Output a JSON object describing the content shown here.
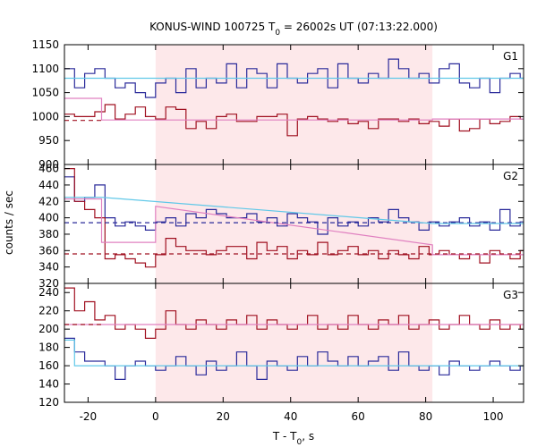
{
  "chart_data": {
    "type": "line",
    "title_main": "KONUS-WIND 100725 T",
    "title_sub": "0",
    "title_rest": " = 26002s UT (07:13:22.000)",
    "xlabel_main": "T - T",
    "xlabel_sub": "0",
    "xlabel_rest": ", s",
    "ylabel": "counts / sec",
    "xlim": [
      -27,
      109
    ],
    "xticks": [
      -20,
      0,
      20,
      40,
      60,
      80,
      100
    ],
    "highlight": {
      "x0": 0,
      "x1": 82,
      "color": "#fde8ea"
    },
    "colors": {
      "dark_blue": "#2a2a9a",
      "dark_red": "#a01020",
      "light_blue": "#60c8e8",
      "pink": "#e080c0"
    },
    "panels": [
      {
        "name": "G1",
        "ylim": [
          900,
          1150
        ],
        "yticks": [
          900,
          950,
          1000,
          1050,
          1100,
          1150
        ],
        "series": [
          {
            "color": "dark_blue",
            "step": true,
            "x": [
              -27,
              -24,
              -21,
              -18,
              -15,
              -12,
              -9,
              -6,
              -3,
              0,
              3,
              6,
              9,
              12,
              15,
              18,
              21,
              24,
              27,
              30,
              33,
              36,
              39,
              42,
              45,
              48,
              51,
              54,
              57,
              60,
              63,
              66,
              69,
              72,
              75,
              78,
              81,
              84,
              87,
              90,
              93,
              96,
              99,
              102,
              105,
              108
            ],
            "y": [
              1100,
              1060,
              1090,
              1100,
              1080,
              1060,
              1070,
              1050,
              1040,
              1070,
              1080,
              1050,
              1100,
              1060,
              1080,
              1070,
              1110,
              1060,
              1100,
              1090,
              1060,
              1110,
              1080,
              1070,
              1090,
              1100,
              1060,
              1110,
              1080,
              1070,
              1090,
              1080,
              1120,
              1100,
              1080,
              1090,
              1070,
              1100,
              1110,
              1070,
              1060,
              1080,
              1050,
              1080,
              1090,
              1080
            ]
          },
          {
            "color": "dark_red",
            "step": true,
            "x": [
              -27,
              -24,
              -21,
              -18,
              -15,
              -12,
              -9,
              -6,
              -3,
              0,
              3,
              6,
              9,
              12,
              15,
              18,
              21,
              24,
              27,
              30,
              33,
              36,
              39,
              42,
              45,
              48,
              51,
              54,
              57,
              60,
              63,
              66,
              69,
              72,
              75,
              78,
              81,
              84,
              87,
              90,
              93,
              96,
              99,
              102,
              105,
              108
            ],
            "y": [
              1005,
              1000,
              1000,
              1010,
              1025,
              995,
              1005,
              1020,
              1000,
              995,
              1020,
              1015,
              975,
              990,
              975,
              1000,
              1005,
              990,
              990,
              1000,
              1000,
              1005,
              960,
              995,
              1000,
              995,
              990,
              995,
              985,
              990,
              975,
              995,
              995,
              990,
              995,
              985,
              990,
              980,
              995,
              970,
              975,
              995,
              985,
              990,
              1000,
              995
            ]
          },
          {
            "color": "light_blue",
            "step": false,
            "x": [
              -27,
              109
            ],
            "y": [
              1080,
              1080
            ]
          },
          {
            "color": "pink",
            "step": false,
            "x": [
              -27,
              -16,
              -16,
              82,
              82,
              109
            ],
            "y": [
              1038,
              1038,
              993,
              993,
              995,
              995
            ]
          },
          {
            "color": "dark_red",
            "dashed": true,
            "x": [
              -27,
              -16
            ],
            "y": [
              992,
              992
            ]
          }
        ]
      },
      {
        "name": "G2",
        "ylim": [
          320,
          465
        ],
        "yticks": [
          320,
          340,
          360,
          380,
          400,
          420,
          440,
          460
        ],
        "series": [
          {
            "color": "dark_blue",
            "step": true,
            "x": [
              -27,
              -24,
              -21,
              -18,
              -15,
              -12,
              -9,
              -6,
              -3,
              0,
              3,
              6,
              9,
              12,
              15,
              18,
              21,
              24,
              27,
              30,
              33,
              36,
              39,
              42,
              45,
              48,
              51,
              54,
              57,
              60,
              63,
              66,
              69,
              72,
              75,
              78,
              81,
              84,
              87,
              90,
              93,
              96,
              99,
              102,
              105,
              108
            ],
            "y": [
              450,
              420,
              425,
              440,
              400,
              390,
              395,
              390,
              385,
              395,
              400,
              390,
              405,
              400,
              410,
              405,
              400,
              400,
              405,
              395,
              400,
              390,
              405,
              400,
              395,
              380,
              400,
              390,
              395,
              390,
              400,
              395,
              410,
              400,
              395,
              385,
              395,
              390,
              395,
              400,
              390,
              395,
              385,
              410,
              390,
              395
            ]
          },
          {
            "color": "dark_red",
            "step": true,
            "x": [
              -27,
              -24,
              -21,
              -18,
              -15,
              -12,
              -9,
              -6,
              -3,
              0,
              3,
              6,
              9,
              12,
              15,
              18,
              21,
              24,
              27,
              30,
              33,
              36,
              39,
              42,
              45,
              48,
              51,
              54,
              57,
              60,
              63,
              66,
              69,
              72,
              75,
              78,
              81,
              84,
              87,
              90,
              93,
              96,
              99,
              102,
              105,
              108
            ],
            "y": [
              460,
              420,
              410,
              400,
              350,
              355,
              350,
              345,
              340,
              355,
              375,
              365,
              360,
              360,
              355,
              360,
              365,
              365,
              350,
              370,
              360,
              365,
              350,
              360,
              355,
              370,
              355,
              360,
              365,
              355,
              360,
              350,
              360,
              355,
              350,
              365,
              355,
              360,
              355,
              350,
              355,
              345,
              360,
              355,
              350,
              360
            ]
          },
          {
            "color": "pink",
            "step": false,
            "x": [
              -27,
              -16,
              -16,
              0,
              0,
              82,
              82,
              109
            ],
            "y": [
              423,
              423,
              370,
              370,
              414,
              367,
              355,
              355
            ]
          },
          {
            "color": "dark_blue",
            "dashed": true,
            "x": [
              -27,
              109
            ],
            "y": [
              394,
              394
            ]
          },
          {
            "color": "dark_red",
            "dashed": true,
            "x": [
              -27,
              109
            ],
            "y": [
              356,
              356
            ]
          },
          {
            "color": "light_blue",
            "step": false,
            "x": [
              -27,
              -16,
              82,
              109
            ],
            "y": [
              425,
              425,
              393,
              393
            ]
          }
        ]
      },
      {
        "name": "G3",
        "ylim": [
          120,
          250
        ],
        "yticks": [
          120,
          140,
          160,
          180,
          200,
          220,
          240
        ],
        "series": [
          {
            "color": "dark_red",
            "step": true,
            "x": [
              -27,
              -24,
              -21,
              -18,
              -15,
              -12,
              -9,
              -6,
              -3,
              0,
              3,
              6,
              9,
              12,
              15,
              18,
              21,
              24,
              27,
              30,
              33,
              36,
              39,
              42,
              45,
              48,
              51,
              54,
              57,
              60,
              63,
              66,
              69,
              72,
              75,
              78,
              81,
              84,
              87,
              90,
              93,
              96,
              99,
              102,
              105,
              108
            ],
            "y": [
              245,
              220,
              230,
              210,
              215,
              200,
              205,
              200,
              190,
              200,
              220,
              205,
              200,
              210,
              205,
              200,
              210,
              205,
              215,
              200,
              210,
              205,
              200,
              205,
              215,
              200,
              205,
              200,
              215,
              205,
              200,
              210,
              205,
              215,
              200,
              205,
              210,
              200,
              205,
              215,
              205,
              200,
              210,
              200,
              205,
              200
            ]
          },
          {
            "color": "dark_blue",
            "step": true,
            "x": [
              -27,
              -24,
              -21,
              -18,
              -15,
              -12,
              -9,
              -6,
              -3,
              0,
              3,
              6,
              9,
              12,
              15,
              18,
              21,
              24,
              27,
              30,
              33,
              36,
              39,
              42,
              45,
              48,
              51,
              54,
              57,
              60,
              63,
              66,
              69,
              72,
              75,
              78,
              81,
              84,
              87,
              90,
              93,
              96,
              99,
              102,
              105,
              108
            ],
            "y": [
              190,
              175,
              165,
              165,
              160,
              145,
              160,
              165,
              160,
              155,
              160,
              170,
              160,
              150,
              165,
              155,
              160,
              175,
              160,
              145,
              165,
              160,
              155,
              170,
              160,
              175,
              165,
              160,
              170,
              160,
              165,
              170,
              155,
              175,
              160,
              155,
              160,
              150,
              165,
              160,
              155,
              160,
              165,
              160,
              155,
              160
            ]
          },
          {
            "color": "light_blue",
            "step": false,
            "x": [
              -27,
              -24,
              -24,
              109
            ],
            "y": [
              188,
              188,
              160,
              160
            ]
          },
          {
            "color": "pink",
            "step": false,
            "x": [
              -27,
              109
            ],
            "y": [
              205,
              205
            ]
          },
          {
            "color": "dark_red",
            "dashed": true,
            "x": [
              -27,
              -16
            ],
            "y": [
              205,
              205
            ]
          }
        ]
      }
    ]
  }
}
